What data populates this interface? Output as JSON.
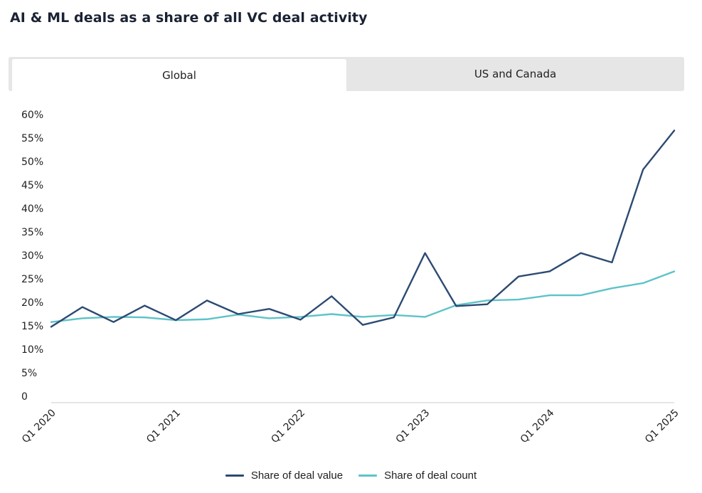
{
  "page": {
    "title": "AI & ML deals as a share of all VC deal activity"
  },
  "tabs": [
    {
      "label": "Global",
      "active": true
    },
    {
      "label": "US and Canada",
      "active": false
    }
  ],
  "colors": {
    "deal_value": "#2c4a72",
    "deal_count": "#5ec3c8",
    "axis": "#cccccc"
  },
  "chart_data": {
    "type": "line",
    "title": "AI & ML deals as a share of all VC deal activity",
    "xlabel": "",
    "ylabel": "",
    "ylim": [
      0,
      60
    ],
    "yticks": [
      "0",
      "5%",
      "10%",
      "15%",
      "20%",
      "25%",
      "30%",
      "35%",
      "40%",
      "45%",
      "50%",
      "55%",
      "60%"
    ],
    "ytick_values": [
      0,
      5,
      10,
      15,
      20,
      25,
      30,
      35,
      40,
      45,
      50,
      55,
      60
    ],
    "x": [
      "Q1 2020",
      "Q2 2020",
      "Q3 2020",
      "Q4 2020",
      "Q1 2021",
      "Q2 2021",
      "Q3 2021",
      "Q4 2021",
      "Q1 2022",
      "Q2 2022",
      "Q3 2022",
      "Q4 2022",
      "Q1 2023",
      "Q2 2023",
      "Q3 2023",
      "Q4 2023",
      "Q1 2024",
      "Q2 2024",
      "Q3 2024",
      "Q4 2024",
      "Q1 2025"
    ],
    "xtick_labels": [
      {
        "index": 0,
        "label": "Q1 2020"
      },
      {
        "index": 4,
        "label": "Q1 2021"
      },
      {
        "index": 8,
        "label": "Q1 2022"
      },
      {
        "index": 12,
        "label": "Q1 2023"
      },
      {
        "index": 16,
        "label": "Q1 2024"
      },
      {
        "index": 20,
        "label": "Q1 2025"
      }
    ],
    "series": [
      {
        "name": "Share of deal value",
        "values": [
          14.8,
          19.0,
          15.8,
          19.3,
          16.2,
          20.4,
          17.5,
          18.6,
          16.3,
          21.3,
          15.2,
          16.8,
          30.5,
          19.2,
          19.6,
          25.5,
          26.6,
          30.5,
          28.5,
          48.3,
          56.6
        ]
      },
      {
        "name": "Share of deal count",
        "values": [
          15.8,
          16.6,
          16.9,
          16.8,
          16.2,
          16.4,
          17.4,
          16.6,
          16.9,
          17.5,
          16.9,
          17.3,
          16.9,
          19.4,
          20.4,
          20.6,
          21.5,
          21.5,
          23.0,
          24.1,
          26.6
        ]
      }
    ],
    "legend_position": "bottom-center",
    "grid": false
  }
}
